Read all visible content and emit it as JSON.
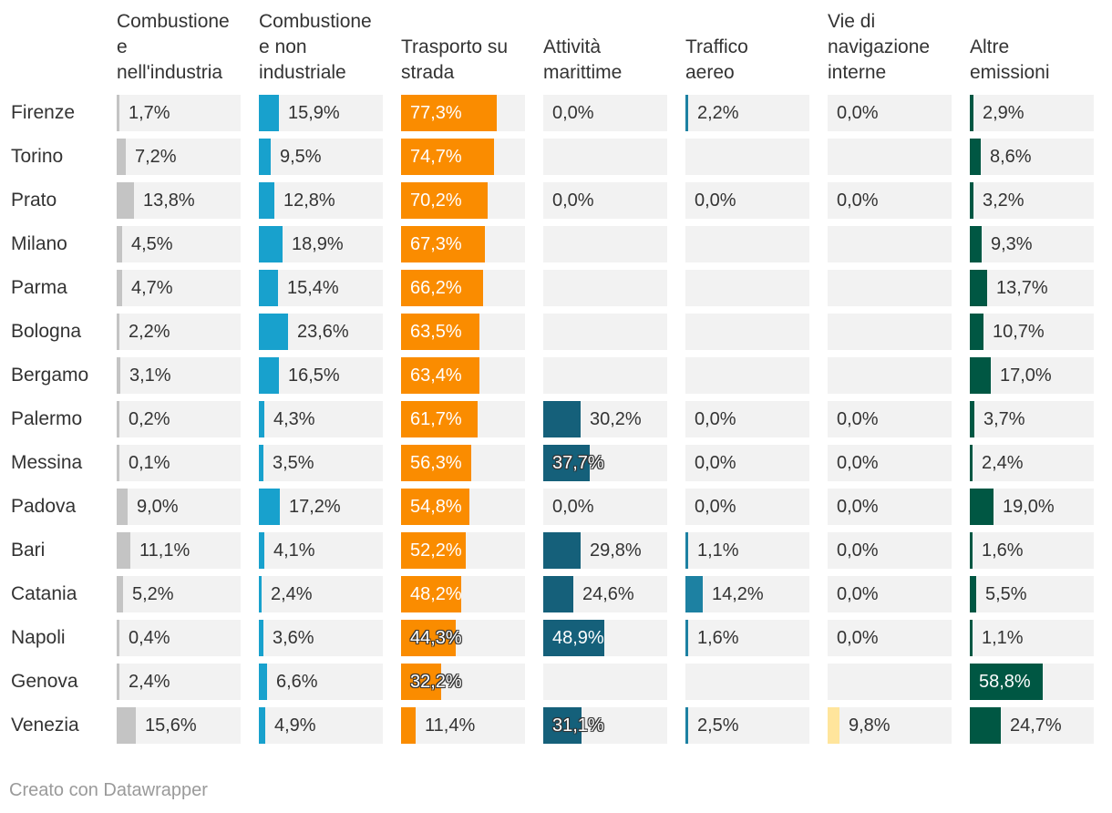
{
  "chart_data": {
    "type": "table",
    "columns": [
      {
        "key": "ind",
        "label": "Combustione\ne\nnell'industria",
        "color": "#c4c4c4"
      },
      {
        "key": "nonind",
        "label": "Combustione\ne non\nindustriale",
        "color": "#18a1cd"
      },
      {
        "key": "road",
        "label": "Trasporto su\nstrada",
        "color": "#fa8c00"
      },
      {
        "key": "sea",
        "label": "Attività\nmarittime",
        "color": "#15607a"
      },
      {
        "key": "air",
        "label": "Traffico\naereo",
        "color": "#1d81a2"
      },
      {
        "key": "inland",
        "label": "Vie di\nnavigazione\ninterne",
        "color": "#ffe59c"
      },
      {
        "key": "other",
        "label": "Altre\nemissioni",
        "color": "#005743"
      }
    ],
    "scale_max": 100,
    "rows": [
      {
        "city": "Firenze",
        "values": [
          1.7,
          15.9,
          77.3,
          0.0,
          2.2,
          0.0,
          2.9
        ],
        "labels": [
          "1,7%",
          "15,9%",
          "77,3%",
          "0,0%",
          "2,2%",
          "0,0%",
          "2,9%"
        ]
      },
      {
        "city": "Torino",
        "values": [
          7.2,
          9.5,
          74.7,
          null,
          null,
          null,
          8.6
        ],
        "labels": [
          "7,2%",
          "9,5%",
          "74,7%",
          "",
          "",
          "",
          "8,6%"
        ]
      },
      {
        "city": "Prato",
        "values": [
          13.8,
          12.8,
          70.2,
          0.0,
          0.0,
          0.0,
          3.2
        ],
        "labels": [
          "13,8%",
          "12,8%",
          "70,2%",
          "0,0%",
          "0,0%",
          "0,0%",
          "3,2%"
        ]
      },
      {
        "city": "Milano",
        "values": [
          4.5,
          18.9,
          67.3,
          null,
          null,
          null,
          9.3
        ],
        "labels": [
          "4,5%",
          "18,9%",
          "67,3%",
          "",
          "",
          "",
          "9,3%"
        ]
      },
      {
        "city": "Parma",
        "values": [
          4.7,
          15.4,
          66.2,
          null,
          null,
          null,
          13.7
        ],
        "labels": [
          "4,7%",
          "15,4%",
          "66,2%",
          "",
          "",
          "",
          "13,7%"
        ]
      },
      {
        "city": "Bologna",
        "values": [
          2.2,
          23.6,
          63.5,
          null,
          null,
          null,
          10.7
        ],
        "labels": [
          "2,2%",
          "23,6%",
          "63,5%",
          "",
          "",
          "",
          "10,7%"
        ]
      },
      {
        "city": "Bergamo",
        "values": [
          3.1,
          16.5,
          63.4,
          null,
          null,
          null,
          17.0
        ],
        "labels": [
          "3,1%",
          "16,5%",
          "63,4%",
          "",
          "",
          "",
          "17,0%"
        ]
      },
      {
        "city": "Palermo",
        "values": [
          0.2,
          4.3,
          61.7,
          30.2,
          0.0,
          0.0,
          3.7
        ],
        "labels": [
          "0,2%",
          "4,3%",
          "61,7%",
          "30,2%",
          "0,0%",
          "0,0%",
          "3,7%"
        ]
      },
      {
        "city": "Messina",
        "values": [
          0.1,
          3.5,
          56.3,
          37.7,
          0.0,
          0.0,
          2.4
        ],
        "labels": [
          "0,1%",
          "3,5%",
          "56,3%",
          "37,7%",
          "0,0%",
          "0,0%",
          "2,4%"
        ]
      },
      {
        "city": "Padova",
        "values": [
          9.0,
          17.2,
          54.8,
          0.0,
          0.0,
          0.0,
          19.0
        ],
        "labels": [
          "9,0%",
          "17,2%",
          "54,8%",
          "0,0%",
          "0,0%",
          "0,0%",
          "19,0%"
        ]
      },
      {
        "city": "Bari",
        "values": [
          11.1,
          4.1,
          52.2,
          29.8,
          1.1,
          0.0,
          1.6
        ],
        "labels": [
          "11,1%",
          "4,1%",
          "52,2%",
          "29,8%",
          "1,1%",
          "0,0%",
          "1,6%"
        ]
      },
      {
        "city": "Catania",
        "values": [
          5.2,
          2.4,
          48.2,
          24.6,
          14.2,
          0.0,
          5.5
        ],
        "labels": [
          "5,2%",
          "2,4%",
          "48,2%",
          "24,6%",
          "14,2%",
          "0,0%",
          "5,5%"
        ]
      },
      {
        "city": "Napoli",
        "values": [
          0.4,
          3.6,
          44.3,
          48.9,
          1.6,
          0.0,
          1.1
        ],
        "labels": [
          "0,4%",
          "3,6%",
          "44,3%",
          "48,9%",
          "1,6%",
          "0,0%",
          "1,1%"
        ]
      },
      {
        "city": "Genova",
        "values": [
          2.4,
          6.6,
          32.2,
          null,
          null,
          null,
          58.8
        ],
        "labels": [
          "2,4%",
          "6,6%",
          "32,2%",
          "",
          "",
          "",
          "58,8%"
        ]
      },
      {
        "city": "Venezia",
        "values": [
          15.6,
          4.9,
          11.4,
          31.1,
          2.5,
          9.8,
          24.7
        ],
        "labels": [
          "15,6%",
          "4,9%",
          "11,4%",
          "31,1%",
          "2,5%",
          "9,8%",
          "24,7%"
        ]
      }
    ],
    "inside_labels": [
      [
        2,
        0
      ],
      [
        2,
        1
      ],
      [
        2,
        2
      ],
      [
        2,
        3
      ],
      [
        2,
        4
      ],
      [
        2,
        5
      ],
      [
        2,
        6
      ],
      [
        2,
        7
      ],
      [
        2,
        8
      ],
      [
        2,
        9
      ],
      [
        2,
        10
      ],
      [
        2,
        11
      ],
      [
        3,
        12
      ],
      [
        6,
        13
      ]
    ],
    "halo_labels": [
      [
        3,
        8
      ],
      [
        2,
        12
      ],
      [
        2,
        13
      ],
      [
        3,
        14
      ]
    ]
  },
  "footer": "Creato con Datawrapper"
}
